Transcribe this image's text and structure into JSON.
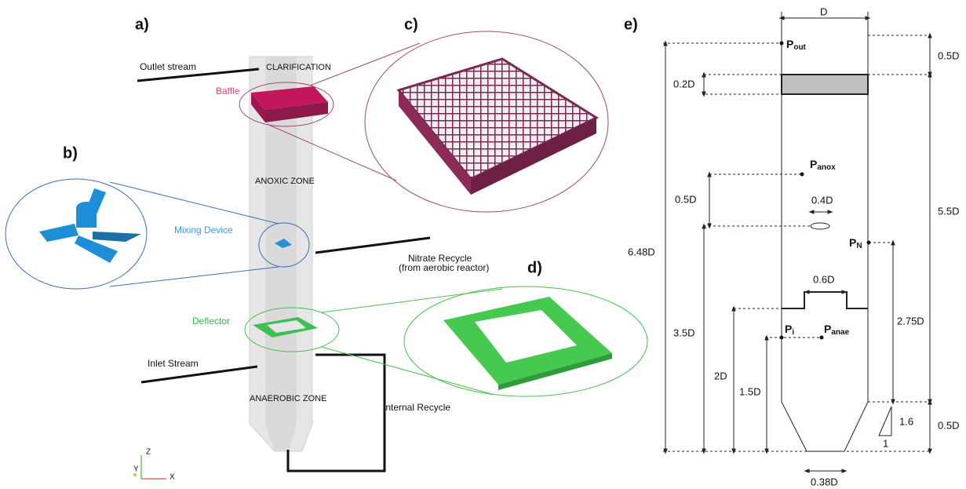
{
  "panels": {
    "a": "a)",
    "b": "b)",
    "c": "c)",
    "d": "d)",
    "e": "e)"
  },
  "model": {
    "outlet": "Outlet stream",
    "clarification": "CLARIFICATION",
    "baffle": "Baffle",
    "anoxic": "ANOXIC ZONE",
    "mixing": "Mixing Device",
    "nitrate": "Nitrate Recycle",
    "nitrate_note": "(from aerobic reactor)",
    "deflector": "Deflector",
    "inlet": "Inlet Stream",
    "anaerobic": "ANAEROBIC ZONE",
    "internal": "Internal Recycle"
  },
  "axes": {
    "z": "Z",
    "y": "Y",
    "x": "X"
  },
  "dimensions": {
    "diameter": "D",
    "top_right": "0.5D",
    "baffle_height": "0.2D",
    "middle_right": "5.5D",
    "total_height": "6.48D",
    "anox_offset": "0.5D",
    "mixer_width": "0.4D",
    "deflector_opening": "0.6D",
    "mixer_height": "3.5D",
    "deflector_height": "2D",
    "inlet_height": "1.5D",
    "pn_height": "2.75D",
    "bottom_right": "0.5D",
    "outlet_width": "0.38D",
    "slope_rise": "1.6",
    "slope_run": "1"
  },
  "points": {
    "out": {
      "base": "P",
      "sub": "out"
    },
    "anox": {
      "base": "P",
      "sub": "anox"
    },
    "n": {
      "base": "P",
      "sub": "N"
    },
    "i": {
      "base": "P",
      "sub": "i"
    },
    "anae": {
      "base": "P",
      "sub": "anae"
    }
  }
}
